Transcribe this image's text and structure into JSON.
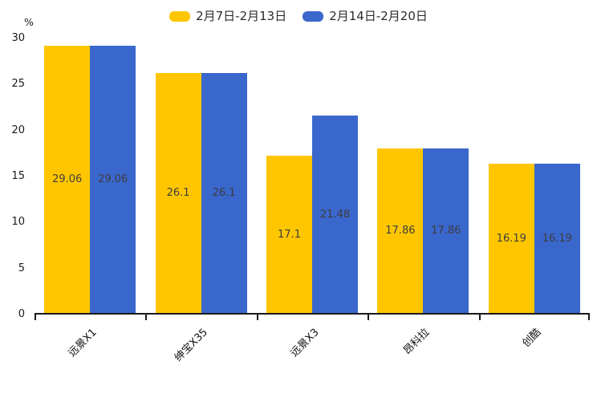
{
  "chart_data": {
    "type": "bar",
    "title": "",
    "xlabel": "",
    "ylabel": "%",
    "categories": [
      "远景X1",
      "绅宝X35",
      "远景X3",
      "昂科拉",
      "创酷"
    ],
    "series": [
      {
        "name": "2月7日-2月13日",
        "color": "#FFC600",
        "values": [
          29.06,
          26.1,
          17.1,
          17.86,
          16.19
        ]
      },
      {
        "name": "2月14日-2月20日",
        "color": "#3A67CC",
        "values": [
          29.06,
          26.1,
          21.48,
          17.86,
          16.19
        ]
      }
    ],
    "value_labels": [
      [
        "29.06",
        "26.1",
        "17.1",
        "17.86",
        "16.19"
      ],
      [
        "29.06",
        "26.1",
        "21.48",
        "17.86",
        "16.19"
      ]
    ],
    "ylim": [
      0,
      30
    ],
    "yticks": [
      "0",
      "5",
      "10",
      "15",
      "20",
      "25",
      "30"
    ],
    "grid": false,
    "legend_position": "top",
    "background_color": "#ffffff",
    "axis_color": "#1a1a1a",
    "value_label_color": "#3d3d3d"
  }
}
